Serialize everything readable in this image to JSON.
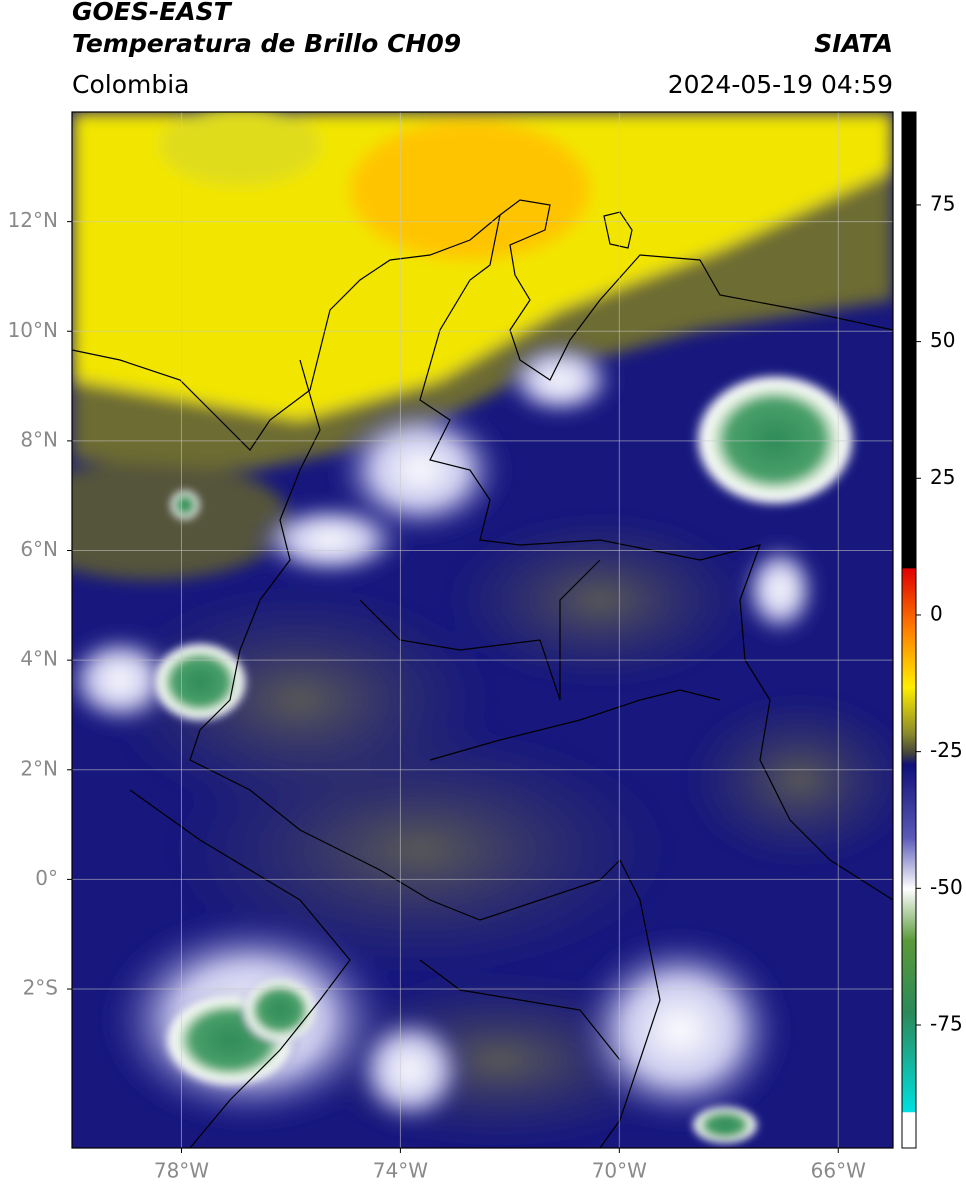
{
  "header": {
    "title": "GOES-EAST",
    "subtitle": "Temperatura de Brillo CH09",
    "source": "SIATA",
    "region": "Colombia",
    "datetime": "2024-05-19 04:59"
  },
  "map": {
    "xlim": [
      -80,
      -65
    ],
    "ylim": [
      -4.9,
      14
    ],
    "xticks": [
      {
        "value": -78,
        "label": "78°W"
      },
      {
        "value": -74,
        "label": "74°W"
      },
      {
        "value": -70,
        "label": "70°W"
      },
      {
        "value": -66,
        "label": "66°W"
      }
    ],
    "yticks": [
      {
        "value": 12,
        "label": "12°N"
      },
      {
        "value": 10,
        "label": "10°N"
      },
      {
        "value": 8,
        "label": "8°N"
      },
      {
        "value": 6,
        "label": "6°N"
      },
      {
        "value": 4,
        "label": "4°N"
      },
      {
        "value": 2,
        "label": "2°N"
      },
      {
        "value": 0,
        "label": "0°"
      },
      {
        "value": -2,
        "label": "2°S"
      }
    ],
    "grid": true
  },
  "colorbar": {
    "lim": [
      -97.5,
      92
    ],
    "ticks": [
      75,
      50,
      25,
      0,
      -25,
      -50,
      -75
    ]
  }
}
